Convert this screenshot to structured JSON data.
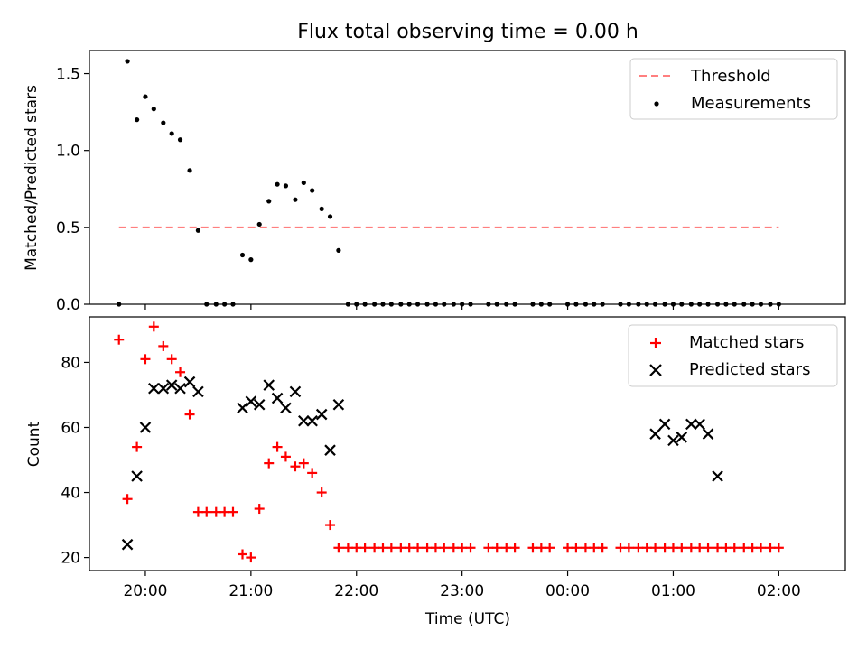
{
  "figure": {
    "title": "Flux total observing time = 0.00 h"
  },
  "chart_data": [
    {
      "type": "scatter",
      "ylabel": "Matched/Predicted stars",
      "ylim": [
        0,
        1.65
      ],
      "yticks": [
        0.0,
        0.5,
        1.0,
        1.5
      ],
      "ytick_labels": [
        "0.0",
        "0.5",
        "1.0",
        "1.5"
      ],
      "xlim_hours": [
        19.47,
        26.63
      ],
      "legend_position": "upper right",
      "threshold": {
        "name": "Threshold",
        "value": 0.5,
        "x_range": [
          19.75,
          26.0
        ],
        "color": "#ff7f7f",
        "style": "dashed"
      },
      "series": [
        {
          "name": "Measurements",
          "color": "#000000",
          "marker": "dot",
          "x": [
            19.75,
            19.83,
            19.92,
            20.0,
            20.08,
            20.17,
            20.25,
            20.33,
            20.42,
            20.5,
            20.58,
            20.67,
            20.75,
            20.83,
            20.92,
            21.0,
            21.08,
            21.17,
            21.25,
            21.33,
            21.42,
            21.5,
            21.58,
            21.67,
            21.75,
            21.83,
            21.92,
            22.0,
            22.08,
            22.17,
            22.25,
            22.33,
            22.42,
            22.5,
            22.58,
            22.67,
            22.75,
            22.83,
            22.92,
            23.0,
            23.08,
            23.25,
            23.33,
            23.42,
            23.5,
            23.67,
            23.75,
            23.83,
            24.0,
            24.08,
            24.17,
            24.25,
            24.33,
            24.5,
            24.58,
            24.67,
            24.75,
            24.83,
            24.92,
            25.0,
            25.08,
            25.17,
            25.25,
            25.33,
            25.42,
            25.5,
            25.58,
            25.67,
            25.75,
            25.83,
            25.92,
            26.0
          ],
          "y": [
            0.0,
            1.58,
            1.2,
            1.35,
            1.27,
            1.18,
            1.11,
            1.07,
            0.87,
            0.48,
            0.0,
            0.0,
            0.0,
            0.0,
            0.32,
            0.29,
            0.52,
            0.67,
            0.78,
            0.77,
            0.68,
            0.79,
            0.74,
            0.62,
            0.57,
            0.35,
            0.0,
            0.0,
            0.0,
            0.0,
            0.0,
            0.0,
            0.0,
            0.0,
            0.0,
            0.0,
            0.0,
            0.0,
            0.0,
            0.0,
            0.0,
            0.0,
            0.0,
            0.0,
            0.0,
            0.0,
            0.0,
            0.0,
            0.0,
            0.0,
            0.0,
            0.0,
            0.0,
            0.0,
            0.0,
            0.0,
            0.0,
            0.0,
            0.0,
            0.0,
            0.0,
            0.0,
            0.0,
            0.0,
            0.0,
            0.0,
            0.0,
            0.0,
            0.0,
            0.0,
            0.0,
            0.0
          ]
        }
      ]
    },
    {
      "type": "scatter",
      "xlabel": "Time (UTC)",
      "ylabel": "Count",
      "ylim": [
        16,
        94
      ],
      "yticks": [
        20,
        40,
        60,
        80
      ],
      "ytick_labels": [
        "20",
        "40",
        "60",
        "80"
      ],
      "xlim_hours": [
        19.47,
        26.63
      ],
      "xticks_hours": [
        20,
        21,
        22,
        23,
        24,
        25,
        26
      ],
      "xtick_labels": [
        "20:00",
        "21:00",
        "22:00",
        "23:00",
        "00:00",
        "01:00",
        "02:00"
      ],
      "legend_position": "upper right",
      "series": [
        {
          "name": "Matched stars",
          "color": "#ff0000",
          "marker": "plus",
          "x": [
            19.75,
            19.83,
            19.92,
            20.0,
            20.08,
            20.17,
            20.25,
            20.33,
            20.42,
            20.5,
            20.58,
            20.67,
            20.75,
            20.83,
            20.92,
            21.0,
            21.08,
            21.17,
            21.25,
            21.33,
            21.42,
            21.5,
            21.58,
            21.67,
            21.75,
            21.83,
            21.92,
            22.0,
            22.08,
            22.17,
            22.25,
            22.33,
            22.42,
            22.5,
            22.58,
            22.67,
            22.75,
            22.83,
            22.92,
            23.0,
            23.08,
            23.25,
            23.33,
            23.42,
            23.5,
            23.67,
            23.75,
            23.83,
            24.0,
            24.08,
            24.17,
            24.25,
            24.33,
            24.5,
            24.58,
            24.67,
            24.75,
            24.83,
            24.92,
            25.0,
            25.08,
            25.17,
            25.25,
            25.33,
            25.42,
            25.5,
            25.58,
            25.67,
            25.75,
            25.83,
            25.92,
            26.0
          ],
          "y": [
            87,
            38,
            54,
            81,
            91,
            85,
            81,
            77,
            64,
            34,
            34,
            34,
            34,
            34,
            21,
            20,
            35,
            49,
            54,
            51,
            48,
            49,
            46,
            40,
            30,
            23,
            23,
            23,
            23,
            23,
            23,
            23,
            23,
            23,
            23,
            23,
            23,
            23,
            23,
            23,
            23,
            23,
            23,
            23,
            23,
            23,
            23,
            23,
            23,
            23,
            23,
            23,
            23,
            23,
            23,
            23,
            23,
            23,
            23,
            23,
            23,
            23,
            23,
            23,
            23,
            23,
            23,
            23,
            23,
            23,
            23,
            23
          ]
        },
        {
          "name": "Predicted stars",
          "color": "#000000",
          "marker": "x",
          "x": [
            19.83,
            19.92,
            20.0,
            20.08,
            20.17,
            20.25,
            20.33,
            20.42,
            20.5,
            20.92,
            21.0,
            21.08,
            21.17,
            21.25,
            21.33,
            21.42,
            21.5,
            21.58,
            21.67,
            21.75,
            21.83,
            24.83,
            24.92,
            25.0,
            25.08,
            25.17,
            25.25,
            25.33,
            25.42
          ],
          "y": [
            24,
            45,
            60,
            72,
            72,
            73,
            72,
            74,
            71,
            66,
            68,
            67,
            73,
            69,
            66,
            71,
            62,
            62,
            64,
            53,
            67,
            58,
            61,
            56,
            57,
            61,
            61,
            58,
            45
          ]
        }
      ]
    }
  ]
}
